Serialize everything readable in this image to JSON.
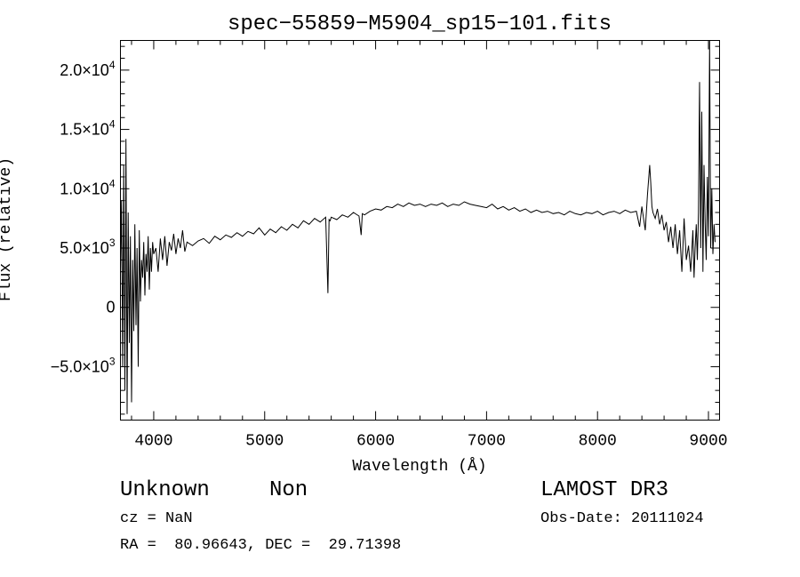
{
  "chart_data": {
    "type": "line",
    "title": "spec−55859−M5904_sp15−101.fits",
    "xlabel": "Wavelength (Å)",
    "ylabel": "Flux (relative)",
    "xlim": [
      3700,
      9100
    ],
    "ylim": [
      -9500,
      22500
    ],
    "grid": false,
    "x_ticks": [
      {
        "value": 4000,
        "label": "4000"
      },
      {
        "value": 5000,
        "label": "5000"
      },
      {
        "value": 6000,
        "label": "6000"
      },
      {
        "value": 7000,
        "label": "7000"
      },
      {
        "value": 8000,
        "label": "8000"
      },
      {
        "value": 9000,
        "label": "9000"
      }
    ],
    "y_ticks": [
      {
        "value": -5000,
        "mant": "−5.0×10",
        "exp": "3"
      },
      {
        "value": 0,
        "mant": "0",
        "exp": ""
      },
      {
        "value": 5000,
        "mant": "5.0×10",
        "exp": "3"
      },
      {
        "value": 10000,
        "mant": "1.0×10",
        "exp": "4"
      },
      {
        "value": 15000,
        "mant": "1.5×10",
        "exp": "4"
      },
      {
        "value": 20000,
        "mant": "2.0×10",
        "exp": "4"
      }
    ],
    "series": [
      {
        "color": "#000000",
        "x": [
          3700,
          3710,
          3720,
          3730,
          3740,
          3750,
          3760,
          3770,
          3780,
          3790,
          3800,
          3810,
          3820,
          3830,
          3840,
          3850,
          3860,
          3870,
          3880,
          3890,
          3900,
          3910,
          3920,
          3930,
          3940,
          3950,
          3960,
          3970,
          3980,
          3990,
          4000,
          4020,
          4040,
          4060,
          4080,
          4100,
          4120,
          4140,
          4160,
          4180,
          4200,
          4220,
          4240,
          4260,
          4280,
          4300,
          4350,
          4400,
          4450,
          4500,
          4550,
          4600,
          4650,
          4700,
          4750,
          4800,
          4850,
          4900,
          4950,
          5000,
          5050,
          5100,
          5150,
          5200,
          5250,
          5300,
          5350,
          5400,
          5450,
          5500,
          5550,
          5570,
          5580,
          5590,
          5600,
          5650,
          5700,
          5750,
          5800,
          5850,
          5870,
          5880,
          5900,
          5950,
          6000,
          6050,
          6100,
          6150,
          6200,
          6250,
          6300,
          6350,
          6400,
          6450,
          6500,
          6550,
          6600,
          6650,
          6700,
          6750,
          6800,
          6850,
          6900,
          6950,
          7000,
          7050,
          7100,
          7150,
          7200,
          7250,
          7300,
          7350,
          7400,
          7450,
          7500,
          7550,
          7600,
          7650,
          7700,
          7750,
          7800,
          7850,
          7900,
          7950,
          8000,
          8050,
          8100,
          8150,
          8200,
          8250,
          8300,
          8350,
          8380,
          8400,
          8430,
          8450,
          8470,
          8480,
          8490,
          8500,
          8520,
          8540,
          8560,
          8580,
          8600,
          8620,
          8640,
          8660,
          8680,
          8700,
          8720,
          8740,
          8760,
          8780,
          8800,
          8820,
          8840,
          8860,
          8870,
          8880,
          8890,
          8900,
          8910,
          8920,
          8930,
          8940,
          8950,
          8960,
          8970,
          8980,
          8990,
          9000,
          9010,
          9020,
          9030,
          9040,
          9050,
          9060
        ],
        "y": [
          3000,
          9000,
          -5000,
          12000,
          -7000,
          14200,
          -9000,
          8000,
          -3000,
          6000,
          -8000,
          4000,
          -2000,
          7000,
          -1500,
          5000,
          -5000,
          6500,
          500,
          4000,
          2500,
          5500,
          1000,
          4500,
          3000,
          6000,
          1500,
          5000,
          3000,
          5500,
          4500,
          5000,
          3000,
          5800,
          4000,
          6000,
          3500,
          5500,
          4800,
          6200,
          4500,
          5800,
          5000,
          6500,
          4700,
          5500,
          5200,
          5600,
          5800,
          5400,
          6000,
          5700,
          6100,
          5900,
          6300,
          6000,
          6400,
          6200,
          6700,
          6100,
          6600,
          6300,
          6800,
          6500,
          7000,
          6700,
          7300,
          7000,
          7500,
          7200,
          7600,
          1200,
          7400,
          7300,
          7600,
          7400,
          7800,
          7600,
          8000,
          7700,
          6100,
          7900,
          7800,
          8100,
          8300,
          8200,
          8500,
          8400,
          8700,
          8500,
          8800,
          8600,
          8700,
          8500,
          8700,
          8600,
          8800,
          8500,
          8700,
          8600,
          8900,
          8700,
          8600,
          8500,
          8400,
          8700,
          8300,
          8500,
          8200,
          8400,
          8100,
          8300,
          8000,
          8200,
          8000,
          8100,
          7900,
          8000,
          7800,
          8100,
          7900,
          7800,
          8000,
          7900,
          8100,
          7800,
          8000,
          8100,
          7900,
          8200,
          8000,
          8100,
          6800,
          8500,
          6500,
          9500,
          12000,
          10500,
          8500,
          8000,
          7500,
          8300,
          7000,
          7800,
          6500,
          7200,
          5500,
          6800,
          5000,
          7000,
          4500,
          6500,
          3000,
          7500,
          4000,
          5200,
          3000,
          6500,
          2500,
          5000,
          7000,
          4000,
          8000,
          19000,
          5000,
          16500,
          3000,
          12000,
          7000,
          4000,
          11000,
          6000,
          22500,
          5000,
          10000,
          4500,
          7000,
          5500
        ]
      }
    ]
  },
  "info": {
    "object_class": "Unknown",
    "object_subclass": "Non",
    "survey": "LAMOST DR3",
    "redshift": "cz = NaN",
    "obs_date": "Obs-Date: 20111024",
    "coords": "RA =  80.96643, DEC =  29.71398"
  }
}
